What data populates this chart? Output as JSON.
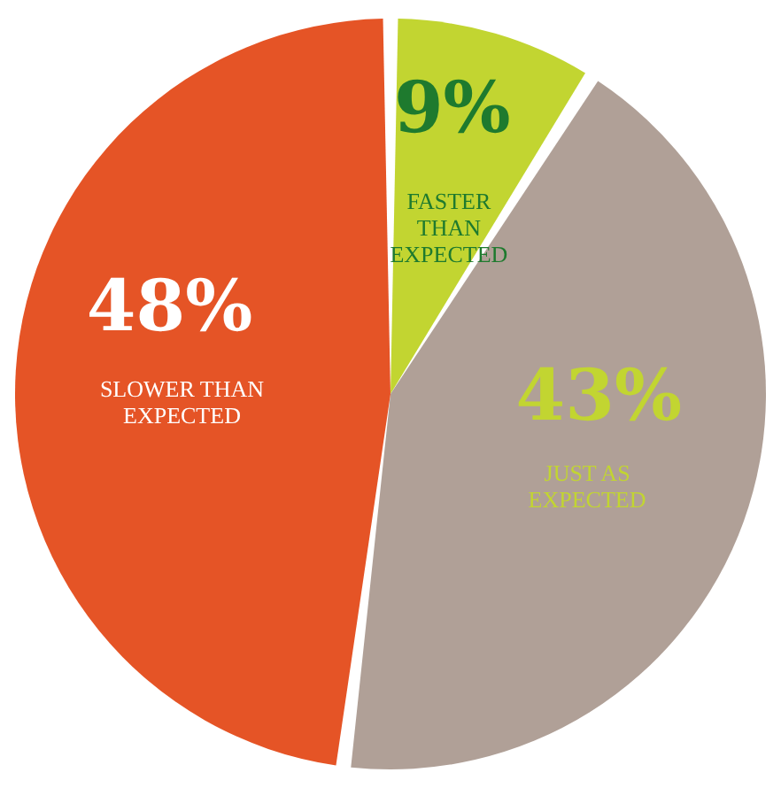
{
  "chart_data": {
    "type": "pie",
    "categories": [
      "FASTER\nTHAN\nEXPECTED",
      "JUST AS\nEXPECTED",
      "SLOWER THAN\nEXPECTED"
    ],
    "values": [
      9,
      43,
      48
    ],
    "colors": [
      "#c2d531",
      "#b0a097",
      "#e55426"
    ],
    "value_labels": [
      "9%",
      "43%",
      "48%"
    ]
  }
}
